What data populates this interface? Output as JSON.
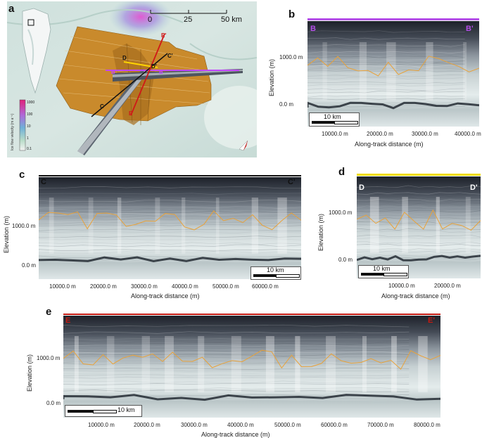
{
  "panels": {
    "a": {
      "letter": "a",
      "scale_ticks": [
        "0",
        "25",
        "50 km"
      ],
      "colorbar_title": "Ice flow velocity (m a⁻¹)",
      "colorbar_ticks": [
        "1000",
        "100",
        "10",
        "1",
        "0.1"
      ],
      "profile_labels": {
        "B": "B",
        "B_prime": "B'",
        "C": "C",
        "C_prime": "C'",
        "D": "D",
        "D_prime": "D'",
        "E": "E",
        "E_prime": "E'"
      },
      "colors": {
        "B": "#c246ff",
        "C": "#111111",
        "D": "#ffd400",
        "E": "#d01818",
        "surface": "#c98a2c"
      }
    },
    "b": {
      "letter": "b",
      "start": "B",
      "end": "B'",
      "color": "#b44ee8",
      "y_title": "Elevation (m)",
      "y_ticks": [
        "1000.0 m",
        "0.0 m"
      ],
      "x_title": "Along-track distance (m)",
      "x_ticks": [
        "10000.0 m",
        "20000.0 m",
        "30000.0 m",
        "40000.0 m"
      ],
      "scale": "10 km"
    },
    "c": {
      "letter": "c",
      "start": "C",
      "end": "C'",
      "color": "#111111",
      "y_title": "Elevation (m)",
      "y_ticks": [
        "1000.0 m",
        "0.0 m"
      ],
      "x_title": "Along-track distance (m)",
      "x_ticks": [
        "10000.0 m",
        "20000.0 m",
        "30000.0 m",
        "40000.0 m",
        "50000.0 m",
        "60000.0 m"
      ],
      "scale": "10 km"
    },
    "d": {
      "letter": "d",
      "start": "D",
      "end": "D'",
      "color": "#f2dc00",
      "y_title": "Elevation (m)",
      "y_ticks": [
        "1000.0 m",
        "0.0 m"
      ],
      "x_title": "Along-track distance (m)",
      "x_ticks": [
        "10000.0 m",
        "20000.0 m"
      ],
      "scale": "10 km"
    },
    "e": {
      "letter": "e",
      "start": "E",
      "end": "E'",
      "color": "#c41a12",
      "y_title": "Elevation (m)",
      "y_ticks": [
        "1000.0 m",
        "0.0 m"
      ],
      "x_title": "Along-track distance (m)",
      "x_ticks": [
        "10000.0 m",
        "20000.0 m",
        "30000.0 m",
        "40000.0 m",
        "50000.0 m",
        "60000.0 m",
        "70000.0 m",
        "80000.0 m"
      ],
      "scale": "10 km"
    }
  },
  "layer_color": "#e8a23a"
}
